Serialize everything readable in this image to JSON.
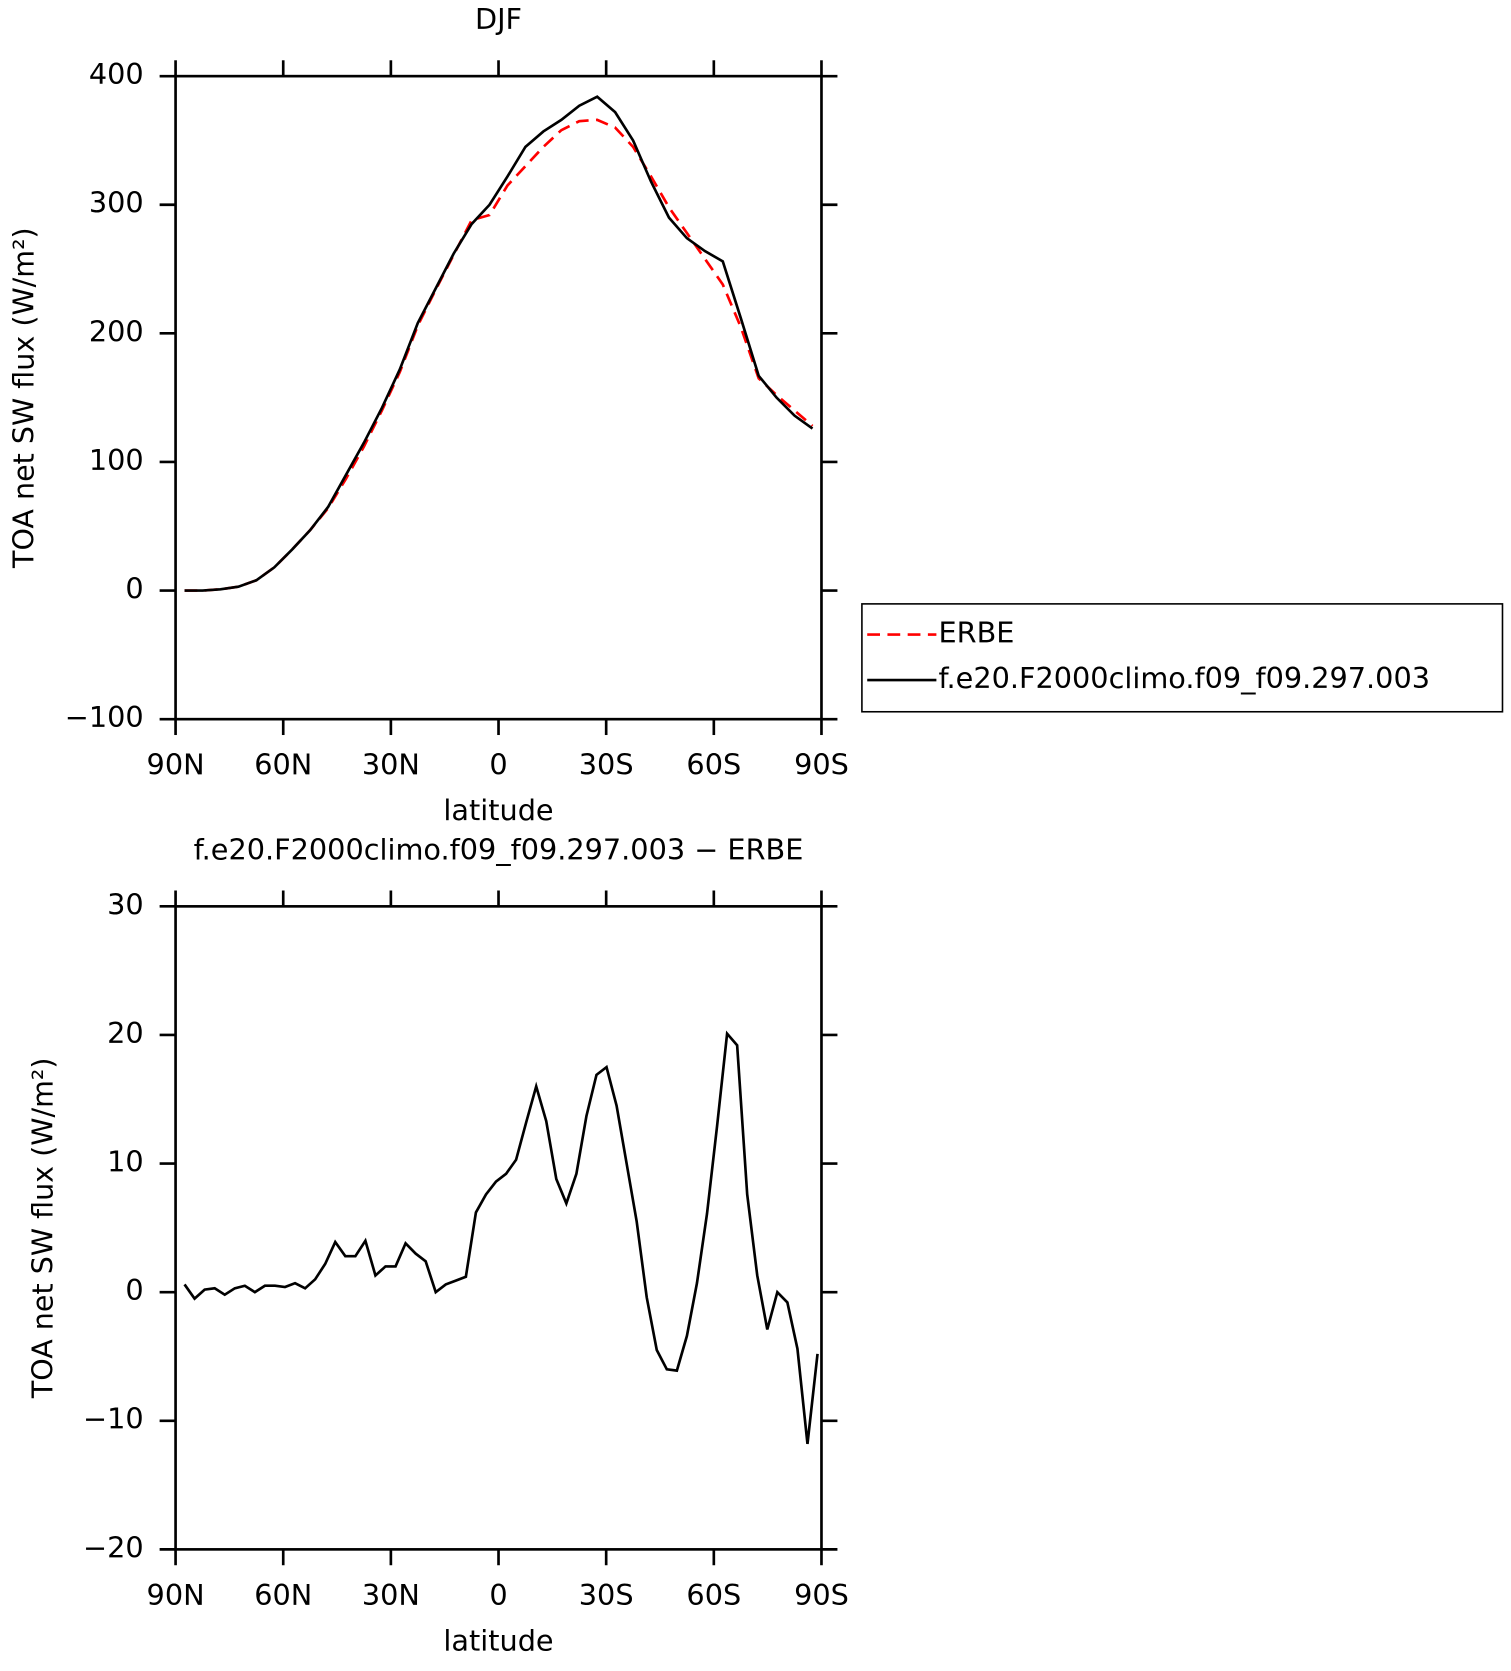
{
  "chart_data": [
    {
      "type": "line",
      "title": "DJF",
      "xlabel": "latitude",
      "ylabel": "TOA net SW flux (W/m²)",
      "x": [
        87.5,
        82.5,
        77.5,
        72.5,
        67.5,
        62.5,
        57.5,
        52.5,
        47.5,
        42.5,
        37.5,
        32.5,
        27.5,
        22.5,
        17.5,
        12.5,
        7.5,
        2.5,
        -2.5,
        -7.5,
        -12.5,
        -17.5,
        -22.5,
        -27.5,
        -32.5,
        -37.5,
        -42.5,
        -47.5,
        -52.5,
        -57.5,
        -62.5,
        -67.5,
        -72.5,
        -77.5,
        -82.5,
        -87.5
      ],
      "series": [
        {
          "name": "ERBE",
          "color": "#ff0000",
          "linestyle": "dashed",
          "values": [
            0,
            0,
            1,
            3,
            8,
            18,
            32,
            47,
            64,
            87,
            112,
            140,
            170,
            206,
            234,
            261,
            288,
            292,
            315,
            330,
            345,
            358,
            365,
            366,
            360,
            345,
            322,
            298,
            278,
            258,
            238,
            205,
            165,
            152,
            140,
            128
          ]
        },
        {
          "name": "f.e20.F2000climo.f09_f09.297.003",
          "color": "#000000",
          "linestyle": "solid",
          "values": [
            0,
            0,
            1,
            3,
            8,
            18,
            32,
            47,
            65,
            90,
            115,
            142,
            172,
            208,
            235,
            262,
            285,
            300,
            322,
            345,
            357,
            366,
            377,
            384,
            372,
            350,
            318,
            290,
            274,
            264,
            256,
            212,
            167,
            150,
            136,
            126
          ]
        }
      ],
      "xlim": [
        90,
        -90
      ],
      "xticks": [
        {
          "value": 90,
          "label": "90N"
        },
        {
          "value": 60,
          "label": "60N"
        },
        {
          "value": 30,
          "label": "30N"
        },
        0,
        {
          "value": -30,
          "label": "30S"
        },
        {
          "value": -60,
          "label": "60S"
        },
        {
          "value": -90,
          "label": "90S"
        }
      ],
      "ylim": [
        -100,
        400
      ],
      "yticks": [
        {
          "value": -100,
          "label": "−100"
        },
        0,
        100,
        200,
        300,
        400
      ],
      "legend": "right"
    },
    {
      "type": "line",
      "title": "f.e20.F2000climo.f09_f09.297.003 − ERBE",
      "xlabel": "latitude",
      "ylabel": "TOA net SW flux (W/m²)",
      "x": [
        87.5,
        84.7,
        81.9,
        79.1,
        76.3,
        73.5,
        70.7,
        67.9,
        65.1,
        62.3,
        59.5,
        56.7,
        53.9,
        51.1,
        48.3,
        45.5,
        42.7,
        39.9,
        37.1,
        34.3,
        31.5,
        28.7,
        25.9,
        23.1,
        20.3,
        17.5,
        14.7,
        11.9,
        9.1,
        6.3,
        3.5,
        0.7,
        -2.1,
        -4.9,
        -7.7,
        -10.5,
        -13.3,
        -16.1,
        -18.9,
        -21.7,
        -24.5,
        -27.3,
        -30.1,
        -32.9,
        -35.7,
        -38.5,
        -41.3,
        -44.1,
        -46.9,
        -49.7,
        -52.5,
        -55.3,
        -58.1,
        -60.9,
        -63.7,
        -66.5,
        -69.3,
        -72.1,
        -74.9,
        -77.7,
        -80.5,
        -83.3,
        -86.1,
        -88.9
      ],
      "values": [
        0.6,
        -0.5,
        0.2,
        0.3,
        -0.2,
        0.3,
        0.5,
        0,
        0.5,
        0.5,
        0.4,
        0.7,
        0.3,
        1,
        2.2,
        3.9,
        2.8,
        2.8,
        4,
        1.3,
        2,
        2,
        3.8,
        3,
        2.4,
        0,
        0.6,
        0.9,
        1.2,
        6.2,
        7.6,
        8.6,
        9.2,
        10.3,
        13.2,
        16,
        13.3,
        8.8,
        6.9,
        9.2,
        13.7,
        16.9,
        17.5,
        14.5,
        10,
        5.5,
        -0.4,
        -4.5,
        -6,
        -6.1,
        -3.4,
        0.7,
        6.1,
        12.9,
        20.1,
        19.2,
        7.6,
        1.3,
        -2.9,
        0,
        -0.8,
        -4.4,
        -11.8,
        -4.8
      ],
      "color": "#000000",
      "xlim": [
        90,
        -90
      ],
      "xticks": [
        {
          "value": 90,
          "label": "90N"
        },
        {
          "value": 60,
          "label": "60N"
        },
        {
          "value": 30,
          "label": "30N"
        },
        0,
        {
          "value": -30,
          "label": "30S"
        },
        {
          "value": -60,
          "label": "60S"
        },
        {
          "value": -90,
          "label": "90S"
        }
      ],
      "ylim": [
        -20,
        30
      ],
      "yticks": [
        {
          "value": -20,
          "label": "−20"
        },
        {
          "value": -10,
          "label": "−10"
        },
        0,
        10,
        20,
        30
      ]
    }
  ]
}
